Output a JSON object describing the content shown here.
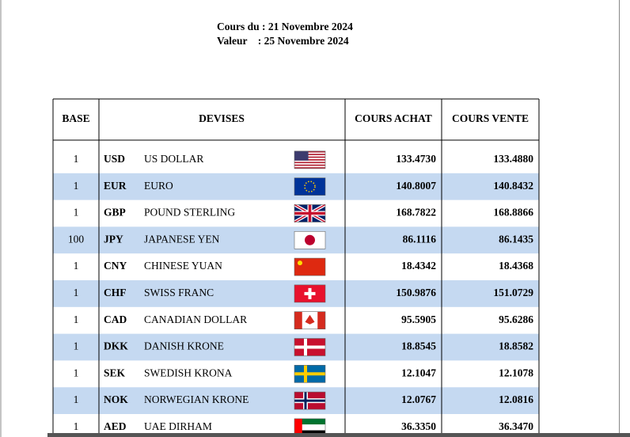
{
  "header": {
    "line1": "Cours du : 21 Novembre 2024",
    "line2": "Valeur    : 25 Novembre 2024"
  },
  "table": {
    "columns": [
      "BASE",
      "DEVISES",
      "COURS ACHAT",
      "COURS VENTE"
    ],
    "rows": [
      [
        1,
        "USD",
        "US DOLLAR",
        "133.4730",
        "133.4880"
      ],
      [
        1,
        "EUR",
        "EURO",
        "140.8007",
        "140.8432"
      ],
      [
        1,
        "GBP",
        "POUND STERLING",
        "168.7822",
        "168.8866"
      ],
      [
        100,
        "JPY",
        "JAPANESE YEN",
        "86.1116",
        "86.1435"
      ],
      [
        1,
        "CNY",
        "CHINESE YUAN",
        "18.4342",
        "18.4368"
      ],
      [
        1,
        "CHF",
        "SWISS FRANC",
        "150.9876",
        "151.0729"
      ],
      [
        1,
        "CAD",
        "CANADIAN DOLLAR",
        "95.5905",
        "95.6286"
      ],
      [
        1,
        "DKK",
        "DANISH KRONE",
        "18.8545",
        "18.8582"
      ],
      [
        1,
        "SEK",
        "SWEDISH KRONA",
        "12.1047",
        "12.1078"
      ],
      [
        1,
        "NOK",
        "NORWEGIAN KRONE",
        "12.0767",
        "12.0816"
      ],
      [
        1,
        "AED",
        "UAE DIRHAM",
        "36.3350",
        "36.3470"
      ]
    ]
  }
}
